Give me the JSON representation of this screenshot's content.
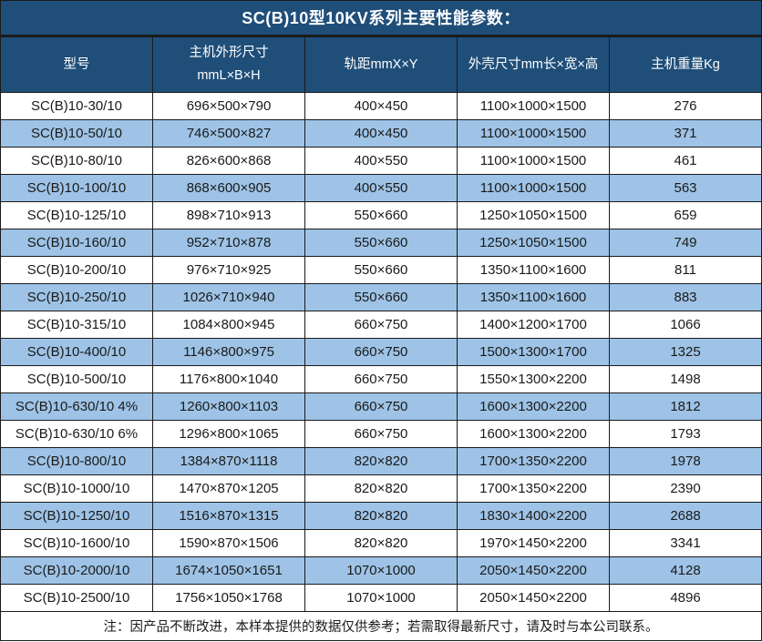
{
  "chart_data": {
    "type": "table",
    "title": "SC(B)10型10KV系列主要性能参数：",
    "columns": [
      "型号",
      "主机外形尺寸\nmmL×B×H",
      "轨距mmX×Y",
      "外壳尺寸mm长×宽×高",
      "主机重量Kg"
    ],
    "rows": [
      [
        "SC(B)10-30/10",
        "696×500×790",
        "400×450",
        "1100×1000×1500",
        "276"
      ],
      [
        "SC(B)10-50/10",
        "746×500×827",
        "400×450",
        "1100×1000×1500",
        "371"
      ],
      [
        "SC(B)10-80/10",
        "826×600×868",
        "400×550",
        "1100×1000×1500",
        "461"
      ],
      [
        "SC(B)10-100/10",
        "868×600×905",
        "400×550",
        "1100×1000×1500",
        "563"
      ],
      [
        "SC(B)10-125/10",
        "898×710×913",
        "550×660",
        "1250×1050×1500",
        "659"
      ],
      [
        "SC(B)10-160/10",
        "952×710×878",
        "550×660",
        "1250×1050×1500",
        "749"
      ],
      [
        "SC(B)10-200/10",
        "976×710×925",
        "550×660",
        "1350×1100×1600",
        "811"
      ],
      [
        "SC(B)10-250/10",
        "1026×710×940",
        "550×660",
        "1350×1100×1600",
        "883"
      ],
      [
        "SC(B)10-315/10",
        "1084×800×945",
        "660×750",
        "1400×1200×1700",
        "1066"
      ],
      [
        "SC(B)10-400/10",
        "1146×800×975",
        "660×750",
        "1500×1300×1700",
        "1325"
      ],
      [
        "SC(B)10-500/10",
        "1176×800×1040",
        "660×750",
        "1550×1300×2200",
        "1498"
      ],
      [
        "SC(B)10-630/10 4%",
        "1260×800×1103",
        "660×750",
        "1600×1300×2200",
        "1812"
      ],
      [
        "SC(B)10-630/10 6%",
        "1296×800×1065",
        "660×750",
        "1600×1300×2200",
        "1793"
      ],
      [
        "SC(B)10-800/10",
        "1384×870×1118",
        "820×820",
        "1700×1350×2200",
        "1978"
      ],
      [
        "SC(B)10-1000/10",
        "1470×870×1205",
        "820×820",
        "1700×1350×2200",
        "2390"
      ],
      [
        "SC(B)10-1250/10",
        "1516×870×1315",
        "820×820",
        "1830×1400×2200",
        "2688"
      ],
      [
        "SC(B)10-1600/10",
        "1590×870×1506",
        "820×820",
        "1970×1450×2200",
        "3341"
      ],
      [
        "SC(B)10-2000/10",
        "1674×1050×1651",
        "1070×1000",
        "2050×1450×2200",
        "4128"
      ],
      [
        "SC(B)10-2500/10",
        "1756×1050×1768",
        "1070×1000",
        "2050×1450×2200",
        "4896"
      ]
    ],
    "note": "注：因产品不断改进，本样本提供的数据仅供参考；若需取得最新尺寸，请及时与本公司联系。"
  },
  "colors": {
    "header_bg": "#1F4E79",
    "header_text": "#FFFFFF",
    "alt_row_bg": "#9EC3E6",
    "border": "#1A1A1A",
    "body_text": "#1A1A1A"
  }
}
